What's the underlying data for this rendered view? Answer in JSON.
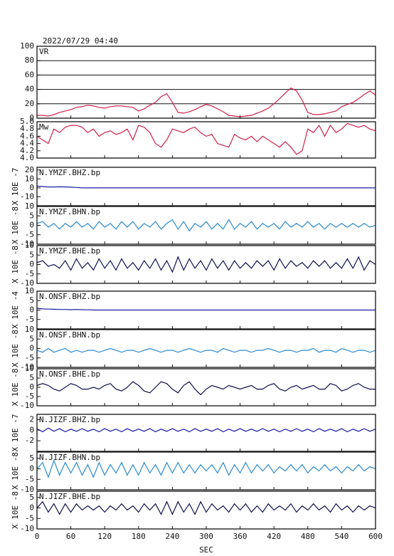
{
  "chart_data": {
    "type": "line",
    "title": "2022/07/29 04:40",
    "xlabel": "SEC",
    "xlim": [
      0,
      600
    ],
    "xticks": [
      0,
      60,
      120,
      180,
      240,
      300,
      360,
      420,
      480,
      540,
      600
    ],
    "x": [
      0,
      10,
      20,
      30,
      40,
      50,
      60,
      70,
      80,
      90,
      100,
      110,
      120,
      130,
      140,
      150,
      160,
      170,
      180,
      190,
      200,
      210,
      220,
      230,
      240,
      250,
      260,
      270,
      280,
      290,
      300,
      310,
      320,
      330,
      340,
      350,
      360,
      370,
      380,
      390,
      400,
      410,
      420,
      430,
      440,
      450,
      460,
      470,
      480,
      490,
      500,
      510,
      520,
      530,
      540,
      550,
      560,
      570,
      580,
      590,
      600
    ],
    "panels": [
      {
        "name": "VR",
        "color": "#d0204a",
        "grid": true,
        "ylim": [
          0,
          100
        ],
        "yticks": [
          0,
          20,
          40,
          60,
          80,
          100
        ],
        "values": [
          4,
          4,
          3,
          5,
          8,
          10,
          12,
          15,
          16,
          18,
          17,
          15,
          14,
          16,
          17,
          17,
          16,
          15,
          10,
          13,
          18,
          22,
          30,
          34,
          22,
          8,
          7,
          9,
          12,
          16,
          19,
          17,
          13,
          9,
          4,
          3,
          2,
          3,
          4,
          7,
          10,
          14,
          20,
          27,
          35,
          42,
          38,
          25,
          8,
          5,
          5,
          6,
          8,
          10,
          16,
          19,
          22,
          27,
          33,
          38,
          32
        ]
      },
      {
        "name": "Mw",
        "color": "#d0204a",
        "grid": false,
        "ylim": [
          4,
          5
        ],
        "yticks": [
          {
            "value": 4,
            "label": "4.0"
          },
          4.2,
          4.4,
          4.6,
          4.8,
          {
            "value": 5,
            "label": "5.0"
          }
        ],
        "values": [
          4.6,
          4.5,
          4.4,
          4.8,
          4.7,
          4.85,
          4.9,
          4.9,
          4.85,
          4.7,
          4.8,
          4.6,
          4.7,
          4.75,
          4.65,
          4.7,
          4.8,
          4.5,
          4.9,
          4.85,
          4.7,
          4.4,
          4.3,
          4.5,
          4.8,
          4.75,
          4.7,
          4.8,
          4.85,
          4.7,
          4.6,
          4.65,
          4.4,
          4.35,
          4.3,
          4.65,
          4.55,
          4.5,
          4.6,
          4.45,
          4.6,
          4.5,
          4.4,
          4.3,
          4.45,
          4.3,
          4.1,
          4.2,
          4.8,
          4.7,
          4.9,
          4.6,
          4.9,
          4.7,
          4.8,
          4.95,
          4.9,
          4.85,
          4.9,
          4.8,
          4.75
        ]
      },
      {
        "name": "N.YMZF.BHZ.bp",
        "ylabel": "X 10E -7",
        "color": "#1a1aa0",
        "grid": false,
        "ylim": [
          -20,
          23
        ],
        "yticks": [
          20,
          10,
          0,
          -10
        ],
        "values": [
          2,
          1.5,
          1,
          1,
          1.2,
          1,
          0.8,
          0.5,
          0,
          0,
          0,
          0,
          0,
          0,
          0,
          0,
          0,
          0,
          0,
          0,
          0,
          0,
          0,
          0,
          0,
          0,
          0,
          0,
          0,
          0,
          0,
          0,
          0,
          0,
          0,
          0,
          0,
          0,
          0,
          0,
          0,
          0,
          0,
          0,
          0,
          0,
          0,
          0,
          0,
          0,
          0,
          0,
          0,
          0,
          0,
          0,
          0,
          0,
          0,
          0,
          0
        ]
      },
      {
        "name": "N.YMZF.BHN.bp",
        "ylabel": "X 10E -8",
        "color": "#2a8ad0",
        "grid": false,
        "ylim": [
          -10,
          10
        ],
        "yticks": [
          10,
          5,
          0,
          -5,
          -10
        ],
        "values": [
          1,
          2,
          -1,
          1,
          -2,
          1,
          -1,
          2,
          -1,
          1,
          -2,
          2,
          -1,
          1,
          -2,
          2,
          -1,
          2,
          -2,
          1,
          -1,
          2,
          -2,
          1,
          3,
          -2,
          2,
          -3,
          1,
          -1,
          2,
          -2,
          1,
          -2,
          3,
          -2,
          1,
          -1,
          2,
          -2,
          1,
          -1,
          1,
          -2,
          2,
          -1,
          1,
          -1,
          2,
          -1,
          1,
          -2,
          1,
          -1,
          1,
          -1,
          1,
          -1,
          1,
          -1,
          0
        ]
      },
      {
        "name": "N.YMZF.BHE.bp",
        "ylabel": "X 10E -8",
        "color": "#101050",
        "grid": false,
        "ylim": [
          -10,
          10
        ],
        "yticks": [
          10,
          5,
          0,
          -5,
          -10
        ],
        "values": [
          1,
          2,
          -1,
          0,
          -2,
          2,
          -3,
          3,
          -2,
          1,
          -3,
          3,
          -2,
          2,
          -3,
          3,
          -2,
          1,
          -3,
          2,
          -2,
          3,
          -3,
          2,
          -4,
          4,
          -3,
          3,
          -2,
          2,
          -3,
          3,
          -2,
          2,
          -3,
          2,
          -2,
          1,
          -2,
          2,
          -1,
          2,
          -3,
          3,
          -2,
          2,
          -1,
          1,
          -2,
          2,
          -1,
          2,
          -2,
          1,
          -2,
          3,
          -2,
          4,
          -3,
          2,
          0
        ]
      },
      {
        "name": "N.ONSF.BHZ.bp",
        "ylabel": "X 10E -4",
        "color": "#1a1aa0",
        "grid": false,
        "ylim": [
          -10,
          10
        ],
        "yticks": [
          10,
          5,
          0,
          -5
        ],
        "values": [
          1,
          0.6,
          0.5,
          0.4,
          0.3,
          0.3,
          0.2,
          0.3,
          0.2,
          0.1,
          0,
          0,
          0,
          0,
          0,
          0,
          0,
          0,
          0,
          0,
          0,
          0,
          0,
          0,
          0,
          0,
          0,
          0,
          0,
          0,
          0,
          0,
          0,
          0,
          0,
          0,
          0,
          0,
          0,
          0,
          0,
          0,
          0,
          0,
          0,
          0,
          0,
          0,
          0,
          0,
          0,
          0,
          0,
          0,
          0,
          0,
          0,
          0,
          0,
          0,
          0
        ]
      },
      {
        "name": "N.ONSF.BHN.bp",
        "ylabel": "X 10E -8",
        "color": "#2a8ad0",
        "grid": false,
        "ylim": [
          -10,
          10
        ],
        "yticks": [
          10,
          5,
          0,
          -5,
          -10
        ],
        "values": [
          -1,
          -2,
          0,
          -2,
          -1,
          0,
          -2,
          -1,
          -2,
          -1,
          -1,
          -2,
          -1,
          0,
          -1,
          -2,
          -1,
          -1,
          -2,
          -1,
          0,
          -1,
          -2,
          -1,
          -1,
          -2,
          -1,
          0,
          -1,
          -2,
          -1,
          -1,
          -2,
          0,
          -1,
          -2,
          -1,
          -1,
          -2,
          -1,
          -1,
          0,
          -1,
          -2,
          -1,
          -1,
          -2,
          -1,
          -1,
          0,
          -2,
          -1,
          -1,
          -2,
          0,
          -1,
          -2,
          -1,
          -1,
          -2,
          -1
        ]
      },
      {
        "name": "N.ONSF.BHE.bp",
        "ylabel": "X 10E -8",
        "color": "#101050",
        "grid": false,
        "ylim": [
          -10,
          10
        ],
        "yticks": [
          10,
          5,
          0,
          -5,
          -10
        ],
        "values": [
          1,
          2,
          1,
          -1,
          -2,
          0,
          2,
          1,
          -1,
          -1,
          0,
          -1,
          1,
          2,
          -1,
          -2,
          0,
          3,
          1,
          -2,
          -3,
          0,
          3,
          2,
          -1,
          -3,
          1,
          3,
          -1,
          -4,
          -1,
          1,
          0,
          -1,
          1,
          0,
          -1,
          0,
          1,
          -1,
          -1,
          1,
          2,
          -1,
          -2,
          0,
          1,
          -1,
          0,
          1,
          -1,
          -1,
          2,
          1,
          -2,
          -1,
          1,
          2,
          0,
          -1,
          -1
        ]
      },
      {
        "name": "N.JIZF.BHZ.bp",
        "ylabel": "X 10E -7",
        "color": "#1a1aa0",
        "grid": false,
        "ylim": [
          -4,
          3
        ],
        "yticks": [
          2,
          0,
          -2
        ],
        "values": [
          0.3,
          -0.3,
          0.4,
          -0.2,
          0.3,
          -0.3,
          0.2,
          -0.2,
          0.3,
          -0.2,
          0.2,
          -0.3,
          0.3,
          -0.2,
          0.2,
          -0.3,
          0.3,
          -0.2,
          0.2,
          -0.2,
          0.3,
          -0.3,
          0.2,
          -0.2,
          0.3,
          -0.2,
          0.2,
          -0.3,
          0.3,
          -0.2,
          0.2,
          -0.2,
          0.3,
          -0.3,
          0.2,
          -0.2,
          0.3,
          -0.2,
          0.2,
          -0.2,
          0.3,
          -0.2,
          0.2,
          -0.3,
          0.2,
          -0.2,
          0.3,
          -0.2,
          0.2,
          -0.3,
          0.3,
          -0.2,
          0.2,
          -0.2,
          0.3,
          -0.3,
          0.2,
          -0.2,
          0.3,
          -0.2,
          0.2
        ]
      },
      {
        "name": "N.JIZF.BHN.bp",
        "ylabel": "X 10E -8",
        "color": "#2a8ad0",
        "grid": false,
        "ylim": [
          -10,
          8
        ],
        "yticks": [
          5,
          0,
          -5,
          -10
        ],
        "values": [
          0,
          3,
          -4,
          4,
          -3,
          3,
          -2,
          3,
          -3,
          2,
          -4,
          3,
          -3,
          2,
          -2,
          3,
          -3,
          2,
          -3,
          3,
          -2,
          2,
          -3,
          3,
          -2,
          3,
          -2,
          2,
          -2,
          2,
          -1,
          2,
          -2,
          3,
          -3,
          2,
          -2,
          3,
          -2,
          2,
          -1,
          2,
          -2,
          1,
          -1,
          2,
          -1,
          2,
          -2,
          1,
          -1,
          2,
          -1,
          1,
          -2,
          1,
          -1,
          2,
          -1,
          1,
          0
        ]
      },
      {
        "name": "N.JIZF.BHE.bp",
        "ylabel": "X 10E -8",
        "color": "#101050",
        "grid": false,
        "ylim": [
          -10,
          8
        ],
        "yticks": [
          5,
          0,
          -5,
          -10
        ],
        "values": [
          0,
          3,
          -2,
          2,
          -3,
          2,
          -2,
          2,
          -1,
          1,
          -1,
          1,
          -2,
          1,
          -1,
          2,
          -1,
          1,
          -2,
          2,
          -1,
          2,
          -3,
          3,
          -3,
          3,
          -2,
          2,
          -3,
          3,
          -2,
          2,
          -1,
          1,
          -2,
          2,
          -1,
          2,
          -2,
          1,
          -2,
          2,
          -1,
          1,
          -1,
          2,
          -2,
          1,
          -1,
          2,
          -1,
          1,
          -2,
          2,
          -1,
          1,
          -2,
          1,
          -1,
          1,
          0
        ]
      }
    ]
  }
}
